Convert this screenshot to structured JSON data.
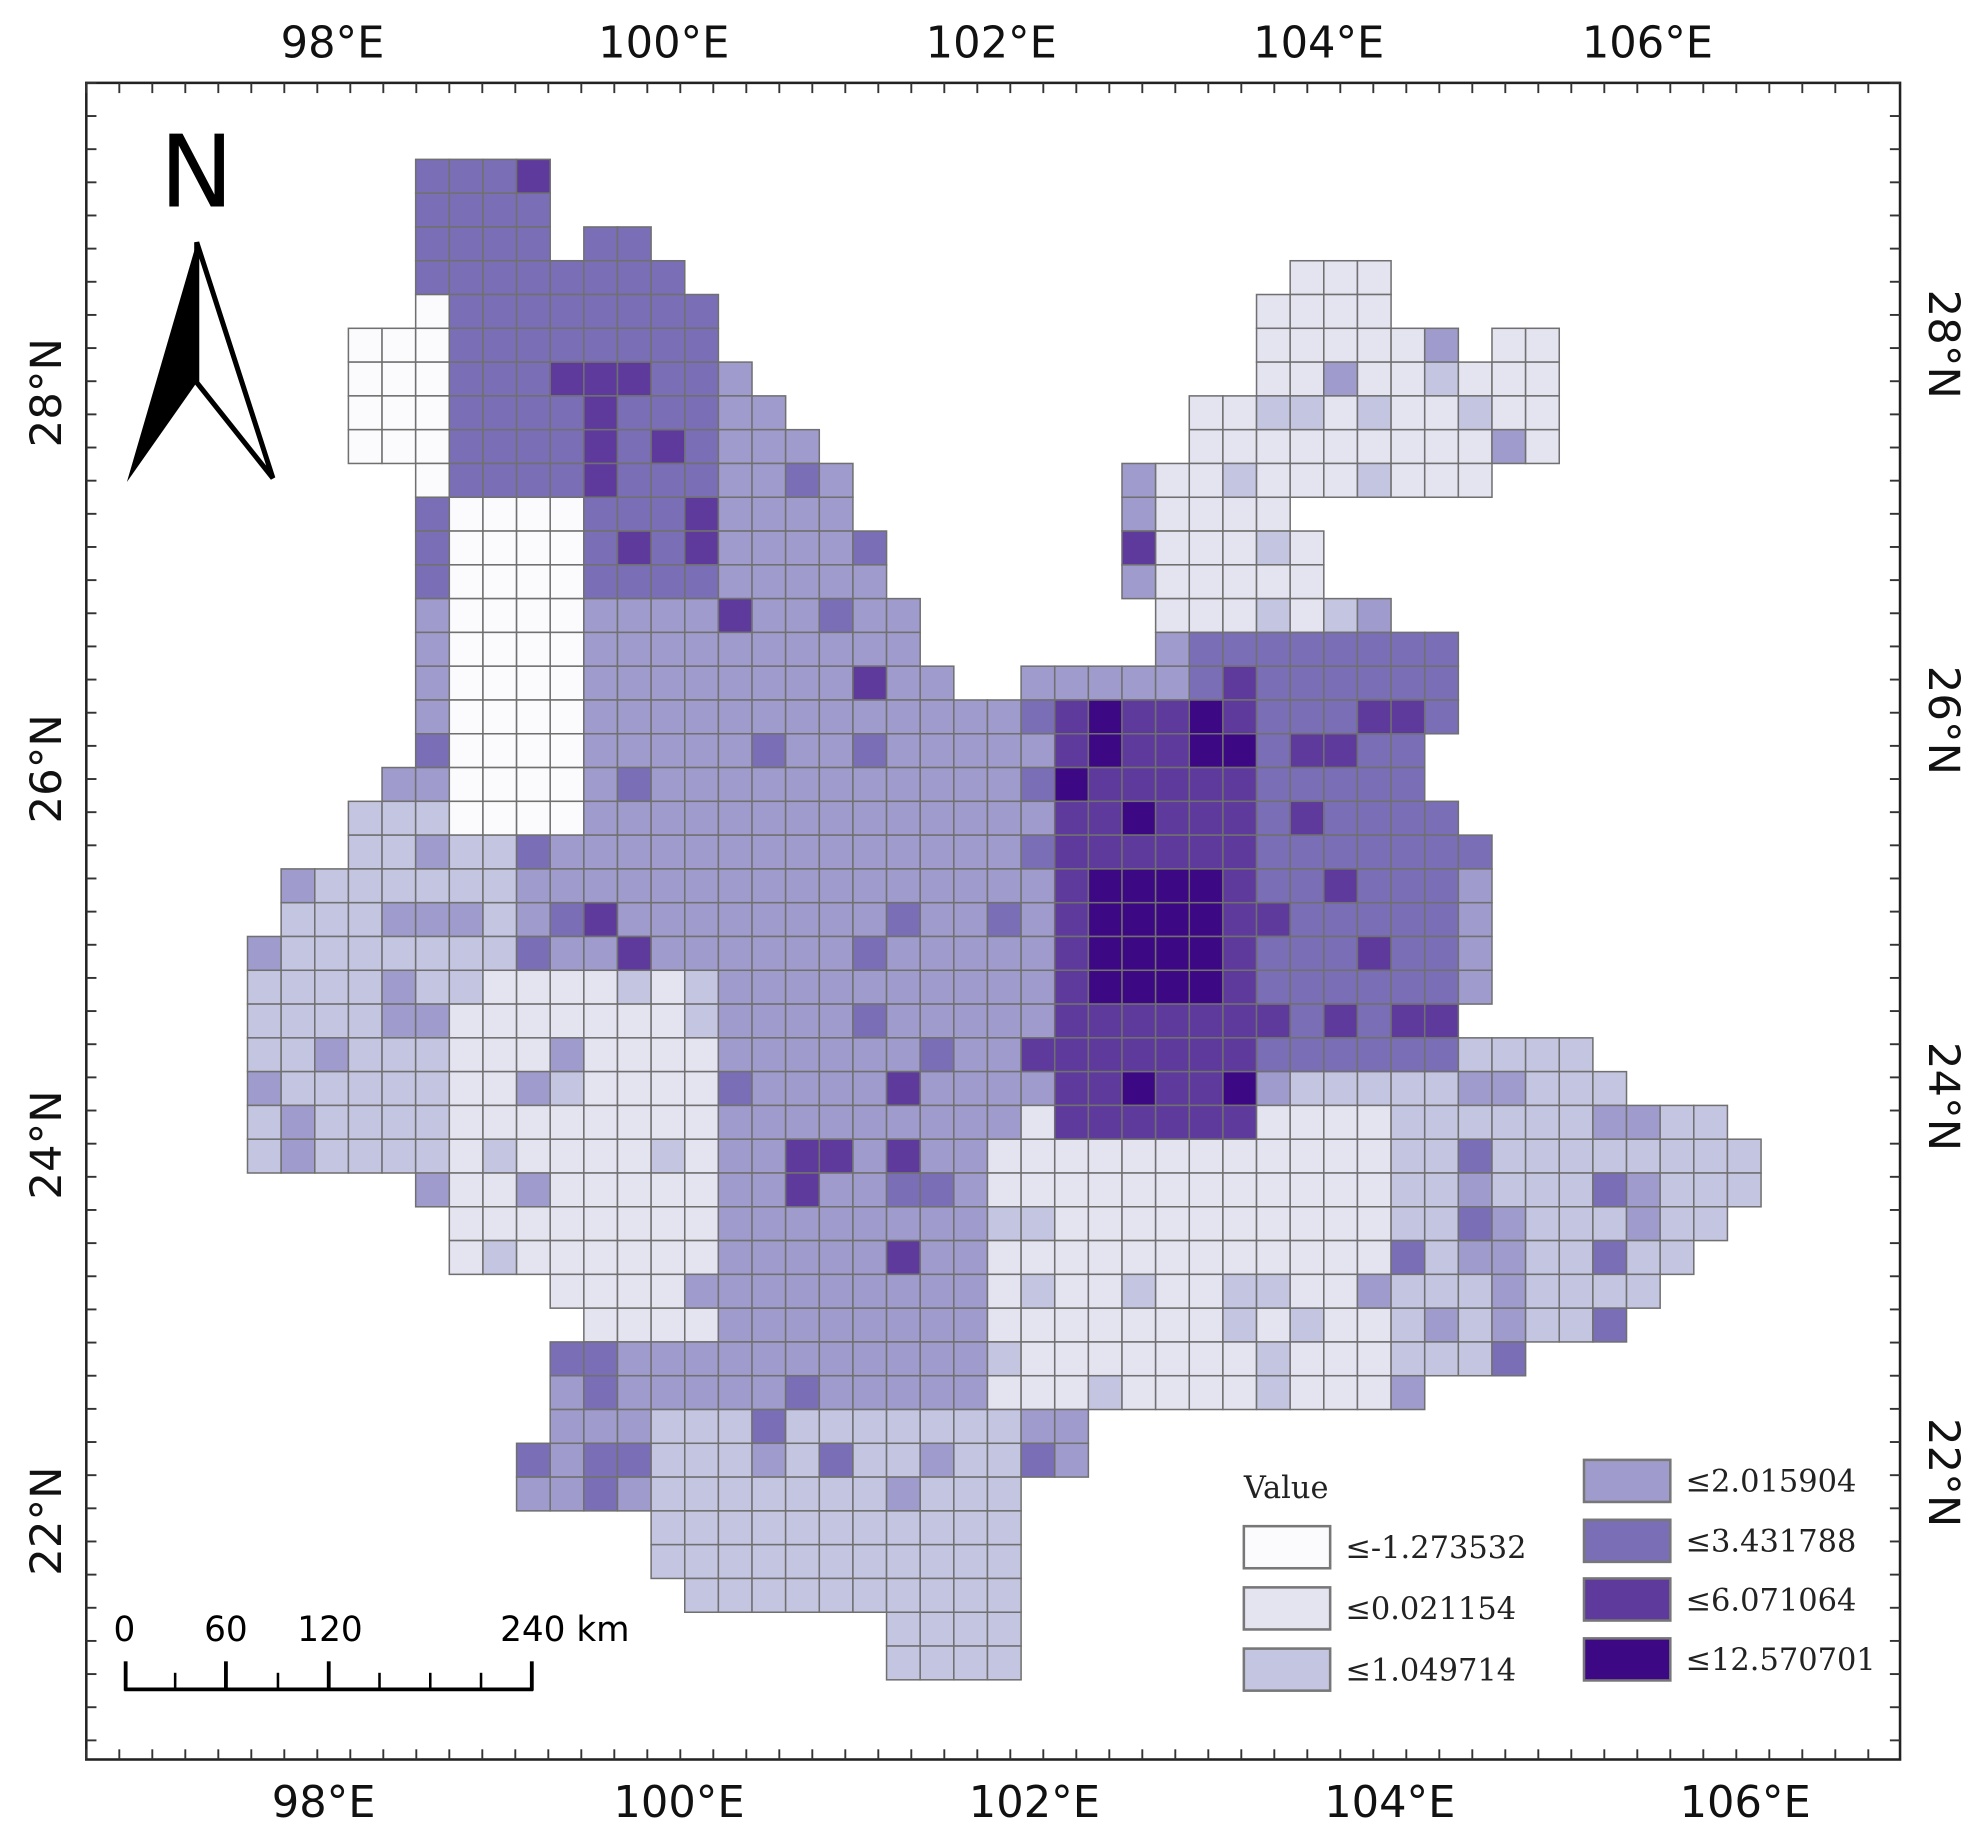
{
  "graticule": {
    "top": [
      "98°E",
      "100°E",
      "102°E",
      "104°E",
      "106°E"
    ],
    "bottom": [
      "98°E",
      "100°E",
      "102°E",
      "104°E",
      "106°E"
    ],
    "left": [
      "28°N",
      "26°N",
      "24°N",
      "22°N"
    ],
    "right": [
      "28°N",
      "26°N",
      "24°N",
      "22°N"
    ]
  },
  "north": "N",
  "scale_bar": {
    "labels": [
      "0",
      "60",
      "120",
      "240 km"
    ]
  },
  "legend": {
    "title": "Value",
    "items": [
      {
        "label": "≤-1.273532",
        "color": "#fbfbfd"
      },
      {
        "label": "≤0.021154",
        "color": "#e4e3f0"
      },
      {
        "label": "≤1.049714",
        "color": "#c4c5e1"
      },
      {
        "label": "≤2.015904",
        "color": "#9f9bcc"
      },
      {
        "label": "≤3.431788",
        "color": "#7a6eb7"
      },
      {
        "label": "≤6.071064",
        "color": "#5d3a9b"
      },
      {
        "label": "≤12.570701",
        "color": "#3d0884"
      }
    ]
  }
}
